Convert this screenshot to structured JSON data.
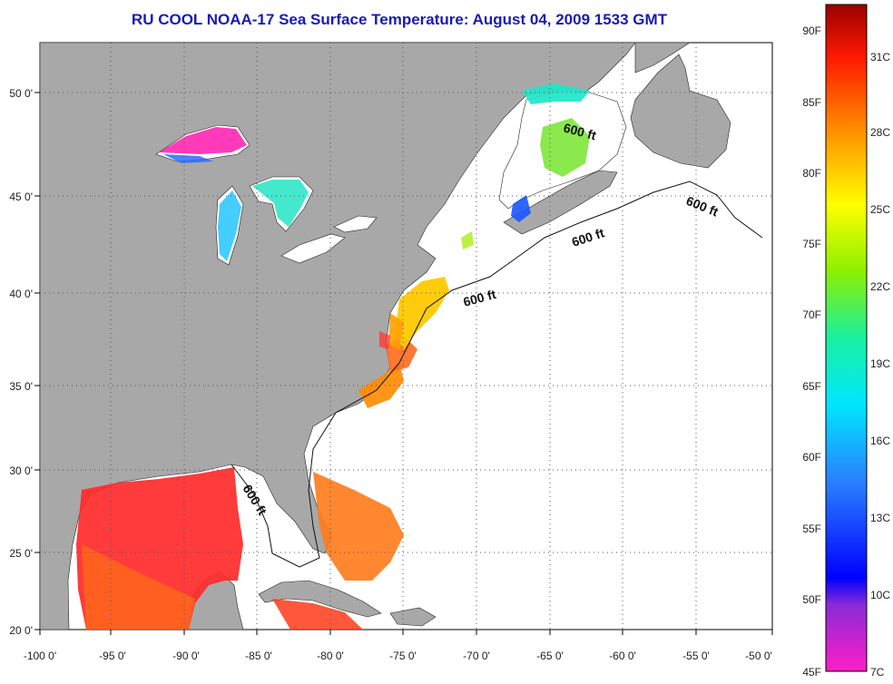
{
  "title": "RU COOL  NOAA-17  Sea Surface Temperature:  August 04, 2009 1533 GMT",
  "colors": {
    "land": "#a8a8a8",
    "ocean": "#ffffff",
    "gridline": "#555555",
    "title": "#1a1ab4"
  },
  "x_axis": {
    "labels": [
      "-100 0'",
      "-95 0'",
      "-90 0'",
      "-85 0'",
      "-80 0'",
      "-75 0'",
      "-70 0'",
      "-65 0'",
      "-60 0'",
      "-55 0'",
      "-50 0'"
    ]
  },
  "y_axis": {
    "labels": [
      "20 0'",
      "25 0'",
      "30 0'",
      "35 0'",
      "40 0'",
      "45 0'",
      "50 0'"
    ]
  },
  "contours": [
    {
      "label": "600 ft"
    },
    {
      "label": "600 ft"
    },
    {
      "label": "600 ft"
    },
    {
      "label": "600 ft"
    },
    {
      "label": "600 ft"
    }
  ],
  "colorbar": {
    "fahrenheit_labels": [
      "90F",
      "85F",
      "80F",
      "75F",
      "70F",
      "65F",
      "60F",
      "55F",
      "50F",
      "45F"
    ],
    "celsius_labels": [
      "31C",
      "28C",
      "25C",
      "22C",
      "19C",
      "16C",
      "13C",
      "10C",
      "7C"
    ]
  }
}
